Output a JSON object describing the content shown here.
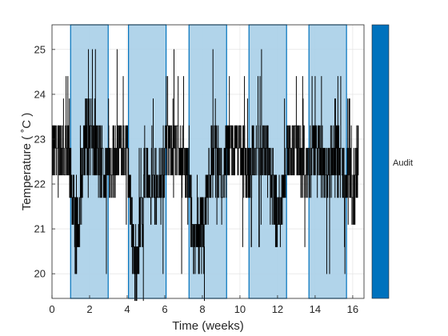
{
  "chart_data": {
    "type": "line",
    "xlabel": "Time (weeks)",
    "ylabel": "Temperature ( ˚C )",
    "xlim": [
      0,
      16.6
    ],
    "ylim": [
      19.45,
      25.55
    ],
    "xticks": [
      0,
      2,
      4,
      6,
      8,
      10,
      12,
      14,
      16
    ],
    "yticks": [
      20,
      21,
      22,
      23,
      24,
      25
    ],
    "grid": true,
    "temperature_levels": [
      19.4,
      20.0,
      20.6,
      21.1,
      21.7,
      22.2,
      22.8,
      23.3,
      23.9,
      24.4,
      25.0,
      25.6
    ],
    "series": [
      {
        "name": "",
        "color": "#000000",
        "baseline": 22.8,
        "typical_range": [
          21.7,
          24.4
        ],
        "x": [
          0,
          0.5,
          1.0,
          1.3,
          1.8,
          2.3,
          2.8,
          3.5,
          4.0,
          4.4,
          5.0,
          5.6,
          6.1,
          6.8,
          7.2,
          7.6,
          8.0,
          8.6,
          9.0,
          9.5,
          10.0,
          10.5,
          11.0,
          11.5,
          12.0,
          12.5,
          13.0,
          13.5,
          14.0,
          14.6,
          15.0,
          15.5,
          16.0,
          16.3
        ],
        "y": [
          22.8,
          22.8,
          22.2,
          20.6,
          23.3,
          22.8,
          22.2,
          22.8,
          22.8,
          20.0,
          22.2,
          21.7,
          22.8,
          22.8,
          22.2,
          20.6,
          21.1,
          22.8,
          22.2,
          22.8,
          22.8,
          22.2,
          22.8,
          22.8,
          21.1,
          22.8,
          22.8,
          22.2,
          22.8,
          22.2,
          22.8,
          22.2,
          21.7,
          22.8
        ]
      }
    ],
    "bands": [
      {
        "label": "Audit",
        "x0": 0.99,
        "x1": 2.99
      },
      {
        "label": "Audit",
        "x0": 4.07,
        "x1": 6.07
      },
      {
        "label": "Audit",
        "x0": 7.29,
        "x1": 9.29
      },
      {
        "label": "Audit",
        "x0": 10.48,
        "x1": 12.48
      },
      {
        "label": "Audit",
        "x0": 13.67,
        "x1": 15.67
      }
    ],
    "band_fill": "#a8cfe8",
    "band_edge": "#0072bd",
    "legend": {
      "label": "Audit",
      "color": "#0072bd",
      "placement": "right"
    }
  }
}
